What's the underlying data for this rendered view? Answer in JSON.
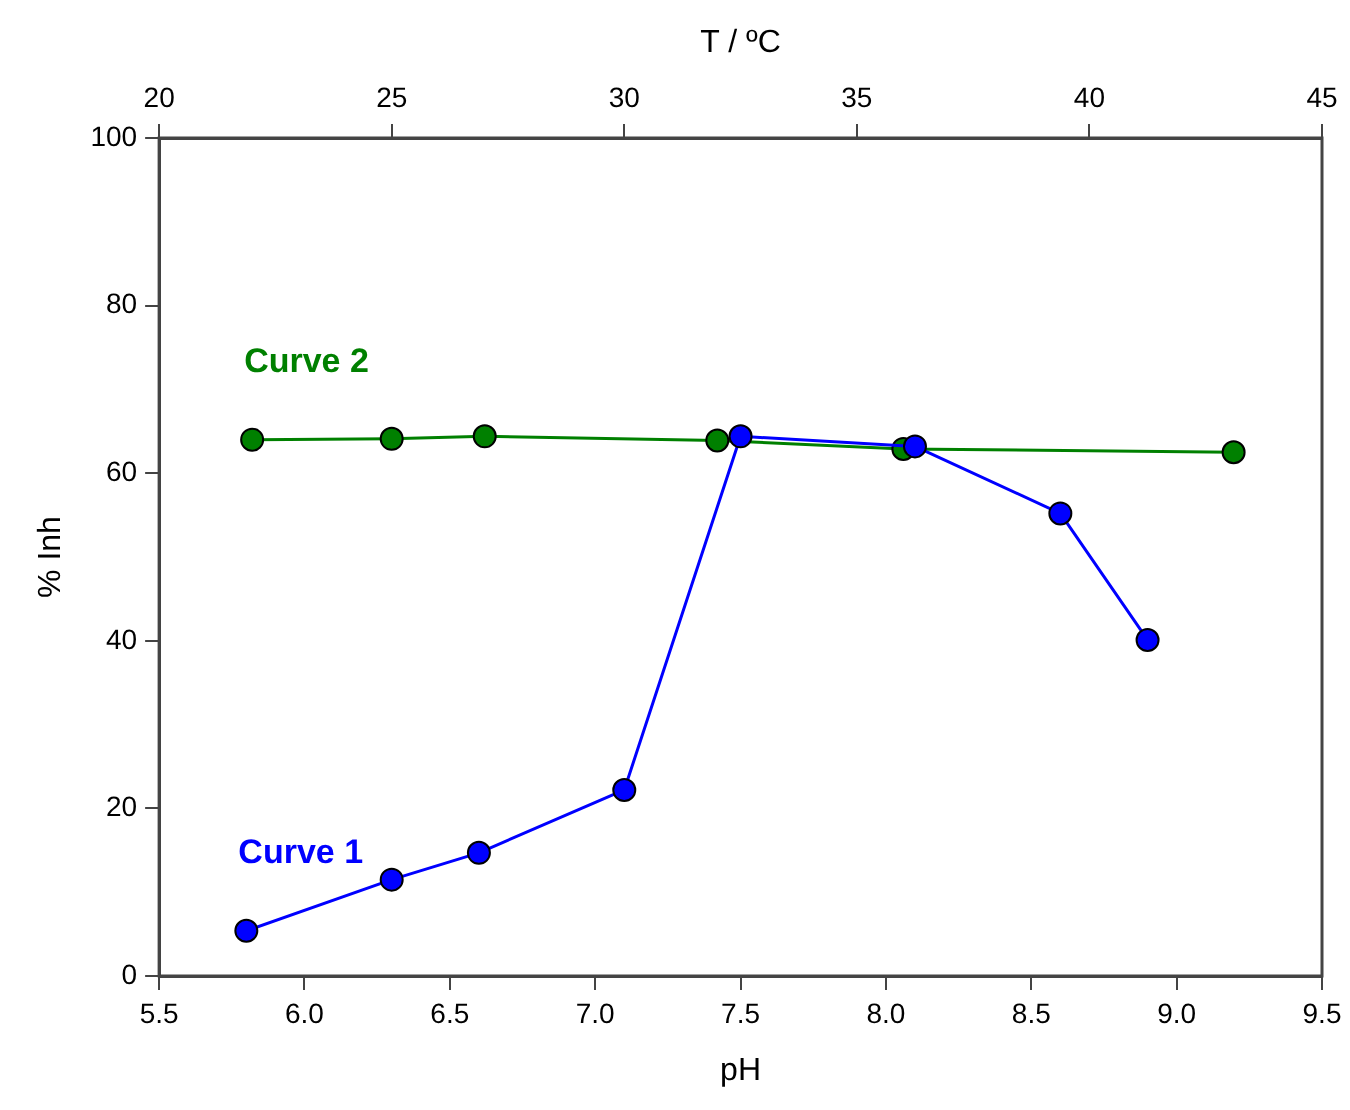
{
  "chart_data": {
    "type": "line",
    "xlabel": "pH",
    "x2label": "T / ºC",
    "ylabel": "% Inh",
    "xlim": [
      5.5,
      9.5
    ],
    "xticks": [
      5.5,
      {
        "value": 6,
        "label": "6.0"
      },
      6.5,
      {
        "value": 7,
        "label": "7.0"
      },
      7.5,
      {
        "value": 8,
        "label": "8.0"
      },
      8.5,
      {
        "value": 9,
        "label": "9.0"
      },
      9.5
    ],
    "x2lim": [
      20,
      45
    ],
    "x2ticks": [
      20,
      25,
      30,
      35,
      40,
      45
    ],
    "ylim": [
      0,
      100
    ],
    "yticks": [
      0,
      20,
      40,
      60,
      80,
      100
    ],
    "grid": false,
    "legend": false,
    "marker": "circle",
    "line_style": "solid",
    "series": [
      {
        "name": "Curve 1",
        "color": "#0000ff",
        "x": [
          5.8,
          6.3,
          6.6,
          7.1,
          7.5,
          8.1,
          8.6,
          8.9
        ],
        "values": [
          5.4,
          11.5,
          14.7,
          22.2,
          64.4,
          63.2,
          55.2,
          40.1
        ]
      },
      {
        "name": "Curve 2",
        "color": "#008000",
        "axis": "x2",
        "x": [
          22,
          25,
          27,
          32,
          36,
          43.1
        ],
        "values": [
          64.0,
          64.1,
          64.4,
          63.9,
          62.9,
          62.5
        ]
      }
    ]
  }
}
